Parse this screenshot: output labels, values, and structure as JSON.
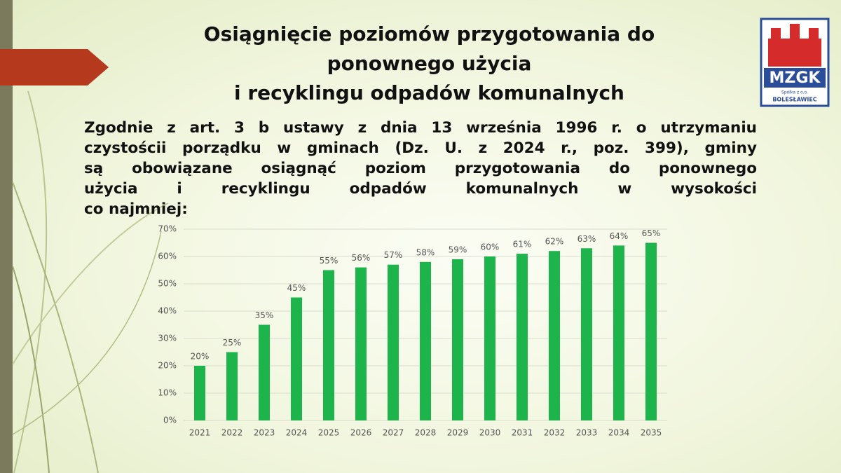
{
  "slide": {
    "title": [
      "Osiągnięcie poziomów przygotowania do",
      "ponownego użycia",
      "i recyklingu odpadów komunalnych"
    ],
    "paragraph": [
      "Zgodnie z art. 3 b ustawy z dnia 13 września  1996 r. o utrzymaniu",
      "czystościi porządku w gminach (Dz. U. z 2024 r., poz. 399), gminy",
      "są obowiązane osiągnąć poziom przygotowania do ponownego",
      "użycia i recyklingu odpadów komunalnych w wysokości",
      "co najmniej:"
    ]
  },
  "logo": {
    "name": "MZGK",
    "company": "Spółka z o.o.",
    "city": "BOLESŁAWIEC"
  },
  "chart_data": {
    "type": "bar",
    "categories": [
      "2021",
      "2022",
      "2023",
      "2024",
      "2025",
      "2026",
      "2027",
      "2028",
      "2029",
      "2030",
      "2031",
      "2032",
      "2033",
      "2034",
      "2035"
    ],
    "values": [
      20,
      25,
      35,
      45,
      55,
      56,
      57,
      58,
      59,
      60,
      61,
      62,
      63,
      64,
      65
    ],
    "value_labels": [
      "20%",
      "25%",
      "35%",
      "45%",
      "55%",
      "56%",
      "57%",
      "58%",
      "59%",
      "60%",
      "61%",
      "62%",
      "63%",
      "64%",
      "65%"
    ],
    "color": "#1db44c",
    "ylim": [
      0,
      70
    ],
    "yticks": [
      {
        "value": 0,
        "label": "0%"
      },
      {
        "value": 10,
        "label": "10%"
      },
      {
        "value": 20,
        "label": "20%"
      },
      {
        "value": 30,
        "label": "30%"
      },
      {
        "value": 40,
        "label": "40%"
      },
      {
        "value": 50,
        "label": "50%"
      },
      {
        "value": 60,
        "label": "60%"
      },
      {
        "value": 70,
        "label": "70%"
      }
    ],
    "grid": true
  }
}
